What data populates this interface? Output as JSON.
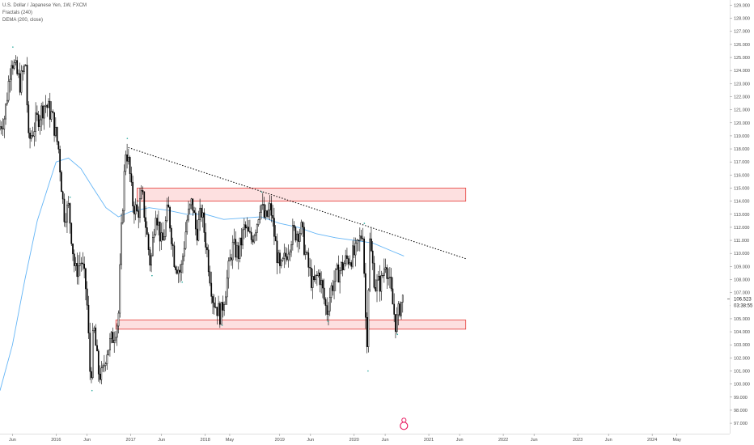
{
  "legend": {
    "title": "U.S. Dollar / Japanese Yen, 1W, FXCM",
    "indicator1": "Fractals (240)",
    "indicator2": "DEMA (200, close)"
  },
  "price_label": {
    "price": "106.523",
    "countdown": "03:38:55"
  },
  "colors": {
    "candle": "#000000",
    "dema": "#64b5f6",
    "zone_fill": "#fde0e0",
    "zone_border": "#e53935",
    "trendline": "#000000",
    "marker": "#e91e63"
  },
  "chart_data": {
    "type": "candlestick",
    "y_axis": {
      "position": "right",
      "range": [
        96.2,
        129.4
      ],
      "tick_labels": [
        "97.000",
        "98.000",
        "99.000",
        "100.000",
        "101.000",
        "102.000",
        "103.000",
        "104.000",
        "105.000",
        "106.000",
        "107.000",
        "108.000",
        "109.000",
        "110.000",
        "111.000",
        "112.000",
        "113.000",
        "114.000",
        "115.000",
        "116.000",
        "117.000",
        "118.000",
        "119.000",
        "120.000",
        "121.000",
        "122.000",
        "123.000",
        "124.000",
        "125.000",
        "126.000",
        "127.000",
        "128.000",
        "129.000"
      ]
    },
    "x_axis": {
      "range": [
        "2015-04-01",
        "2025-01-15"
      ],
      "tick_labels": [
        {
          "label": "Jun",
          "date": "2015-06-01"
        },
        {
          "label": "2016",
          "date": "2016-01-01"
        },
        {
          "label": "Jun",
          "date": "2016-06-01"
        },
        {
          "label": "2017",
          "date": "2017-01-01"
        },
        {
          "label": "Jun",
          "date": "2017-06-01"
        },
        {
          "label": "2018",
          "date": "2018-01-01"
        },
        {
          "label": "May",
          "date": "2018-05-01"
        },
        {
          "label": "2019",
          "date": "2019-01-01"
        },
        {
          "label": "Jun",
          "date": "2019-06-01"
        },
        {
          "label": "2020",
          "date": "2020-01-01"
        },
        {
          "label": "Jun",
          "date": "2020-06-01"
        },
        {
          "label": "2021",
          "date": "2021-01-01"
        },
        {
          "label": "Jun",
          "date": "2021-06-01"
        },
        {
          "label": "2022",
          "date": "2022-01-01"
        },
        {
          "label": "Jun",
          "date": "2022-06-01"
        },
        {
          "label": "2023",
          "date": "2023-01-01"
        },
        {
          "label": "Jun",
          "date": "2023-06-01"
        },
        {
          "label": "2024",
          "date": "2024-01-01"
        },
        {
          "label": "May",
          "date": "2024-05-01"
        }
      ]
    },
    "price_path": [
      [
        "2015-04-01",
        119.5
      ],
      [
        "2015-05-01",
        120.5
      ],
      [
        "2015-06-03",
        125.0
      ],
      [
        "2015-07-15",
        123.0
      ],
      [
        "2015-08-12",
        124.5
      ],
      [
        "2015-08-26",
        118.5
      ],
      [
        "2015-09-30",
        120.0
      ],
      [
        "2015-11-15",
        121.5
      ],
      [
        "2015-12-20",
        120.5
      ],
      [
        "2016-01-20",
        118.0
      ],
      [
        "2016-02-15",
        113.0
      ],
      [
        "2016-03-10",
        113.5
      ],
      [
        "2016-04-10",
        108.5
      ],
      [
        "2016-05-10",
        109.5
      ],
      [
        "2016-06-05",
        107.0
      ],
      [
        "2016-06-25",
        100.0
      ],
      [
        "2016-07-10",
        104.5
      ],
      [
        "2016-08-01",
        101.0
      ],
      [
        "2016-08-20",
        100.5
      ],
      [
        "2016-09-10",
        102.5
      ],
      [
        "2016-10-10",
        103.5
      ],
      [
        "2016-11-08",
        105.0
      ],
      [
        "2016-11-25",
        112.5
      ],
      [
        "2016-12-15",
        118.2
      ],
      [
        "2017-01-01",
        116.5
      ],
      [
        "2017-01-15",
        114.0
      ],
      [
        "2017-02-10",
        113.0
      ],
      [
        "2017-03-05",
        114.5
      ],
      [
        "2017-04-15",
        109.0
      ],
      [
        "2017-05-10",
        113.5
      ],
      [
        "2017-06-10",
        110.5
      ],
      [
        "2017-07-10",
        113.5
      ],
      [
        "2017-08-10",
        109.5
      ],
      [
        "2017-09-10",
        108.5
      ],
      [
        "2017-10-10",
        112.5
      ],
      [
        "2017-11-05",
        114.0
      ],
      [
        "2017-11-25",
        111.5
      ],
      [
        "2017-12-20",
        113.2
      ],
      [
        "2018-01-10",
        111.0
      ],
      [
        "2018-02-15",
        106.5
      ],
      [
        "2018-03-25",
        105.2
      ],
      [
        "2018-04-20",
        107.5
      ],
      [
        "2018-05-20",
        110.5
      ],
      [
        "2018-06-20",
        110.0
      ],
      [
        "2018-07-20",
        112.0
      ],
      [
        "2018-08-20",
        111.0
      ],
      [
        "2018-09-20",
        112.5
      ],
      [
        "2018-10-05",
        114.0
      ],
      [
        "2018-10-28",
        112.5
      ],
      [
        "2018-11-25",
        113.5
      ],
      [
        "2018-12-20",
        110.5
      ],
      [
        "2019-01-10",
        108.5
      ],
      [
        "2019-02-10",
        110.0
      ],
      [
        "2019-03-10",
        111.5
      ],
      [
        "2019-04-25",
        111.8
      ],
      [
        "2019-05-20",
        109.5
      ],
      [
        "2019-06-20",
        107.5
      ],
      [
        "2019-07-20",
        108.5
      ],
      [
        "2019-08-26",
        105.5
      ],
      [
        "2019-09-20",
        107.5
      ],
      [
        "2019-10-20",
        108.5
      ],
      [
        "2019-12-01",
        109.5
      ],
      [
        "2020-01-15",
        110.0
      ],
      [
        "2020-02-20",
        111.8
      ],
      [
        "2020-03-09",
        102.5
      ],
      [
        "2020-03-24",
        111.0
      ],
      [
        "2020-04-20",
        107.5
      ],
      [
        "2020-05-20",
        107.8
      ],
      [
        "2020-06-10",
        109.5
      ],
      [
        "2020-07-01",
        107.5
      ],
      [
        "2020-07-31",
        104.5
      ],
      [
        "2020-08-20",
        106.0
      ],
      [
        "2020-09-01",
        106.5
      ]
    ],
    "dema_200_close": [
      [
        "2015-04-01",
        99.5
      ],
      [
        "2015-06-01",
        103.0
      ],
      [
        "2015-08-01",
        108.0
      ],
      [
        "2015-10-01",
        112.5
      ],
      [
        "2015-12-01",
        115.5
      ],
      [
        "2016-01-01",
        117.0
      ],
      [
        "2016-03-01",
        117.3
      ],
      [
        "2016-05-01",
        116.5
      ],
      [
        "2016-07-01",
        115.0
      ],
      [
        "2016-09-01",
        113.5
      ],
      [
        "2016-11-01",
        112.8
      ],
      [
        "2017-01-01",
        113.2
      ],
      [
        "2017-04-01",
        113.5
      ],
      [
        "2017-07-01",
        113.3
      ],
      [
        "2017-10-01",
        113.0
      ],
      [
        "2018-01-01",
        113.0
      ],
      [
        "2018-04-01",
        112.6
      ],
      [
        "2018-07-01",
        112.7
      ],
      [
        "2018-10-01",
        112.8
      ],
      [
        "2019-01-01",
        112.3
      ],
      [
        "2019-04-01",
        112.0
      ],
      [
        "2019-07-01",
        111.5
      ],
      [
        "2019-10-01",
        111.2
      ],
      [
        "2020-01-01",
        111.0
      ],
      [
        "2020-04-01",
        110.8
      ],
      [
        "2020-07-01",
        110.2
      ],
      [
        "2020-09-01",
        109.8
      ]
    ],
    "fractal_dots": [
      [
        "2015-06-03",
        125.8
      ],
      [
        "2016-03-10",
        114.3
      ],
      [
        "2016-06-25",
        99.5
      ],
      [
        "2016-12-15",
        118.8
      ],
      [
        "2017-04-15",
        108.3
      ],
      [
        "2017-09-10",
        107.8
      ],
      [
        "2018-03-25",
        104.5
      ],
      [
        "2018-10-05",
        114.7
      ],
      [
        "2019-08-26",
        104.8
      ],
      [
        "2020-02-20",
        112.3
      ],
      [
        "2020-03-09",
        101.0
      ],
      [
        "2020-07-31",
        103.8
      ]
    ],
    "zones": [
      {
        "x_start": "2017-02-01",
        "x_end": "2021-07-01",
        "y_low": 114.0,
        "y_high": 115.0
      },
      {
        "x_start": "2016-10-20",
        "x_end": "2021-07-01",
        "y_low": 104.2,
        "y_high": 104.9
      }
    ],
    "trendline": {
      "start": [
        "2016-12-20",
        118.1
      ],
      "end": [
        "2021-07-01",
        109.6
      ]
    },
    "event_marker": {
      "date": "2020-09-01",
      "price": 96.8
    }
  }
}
